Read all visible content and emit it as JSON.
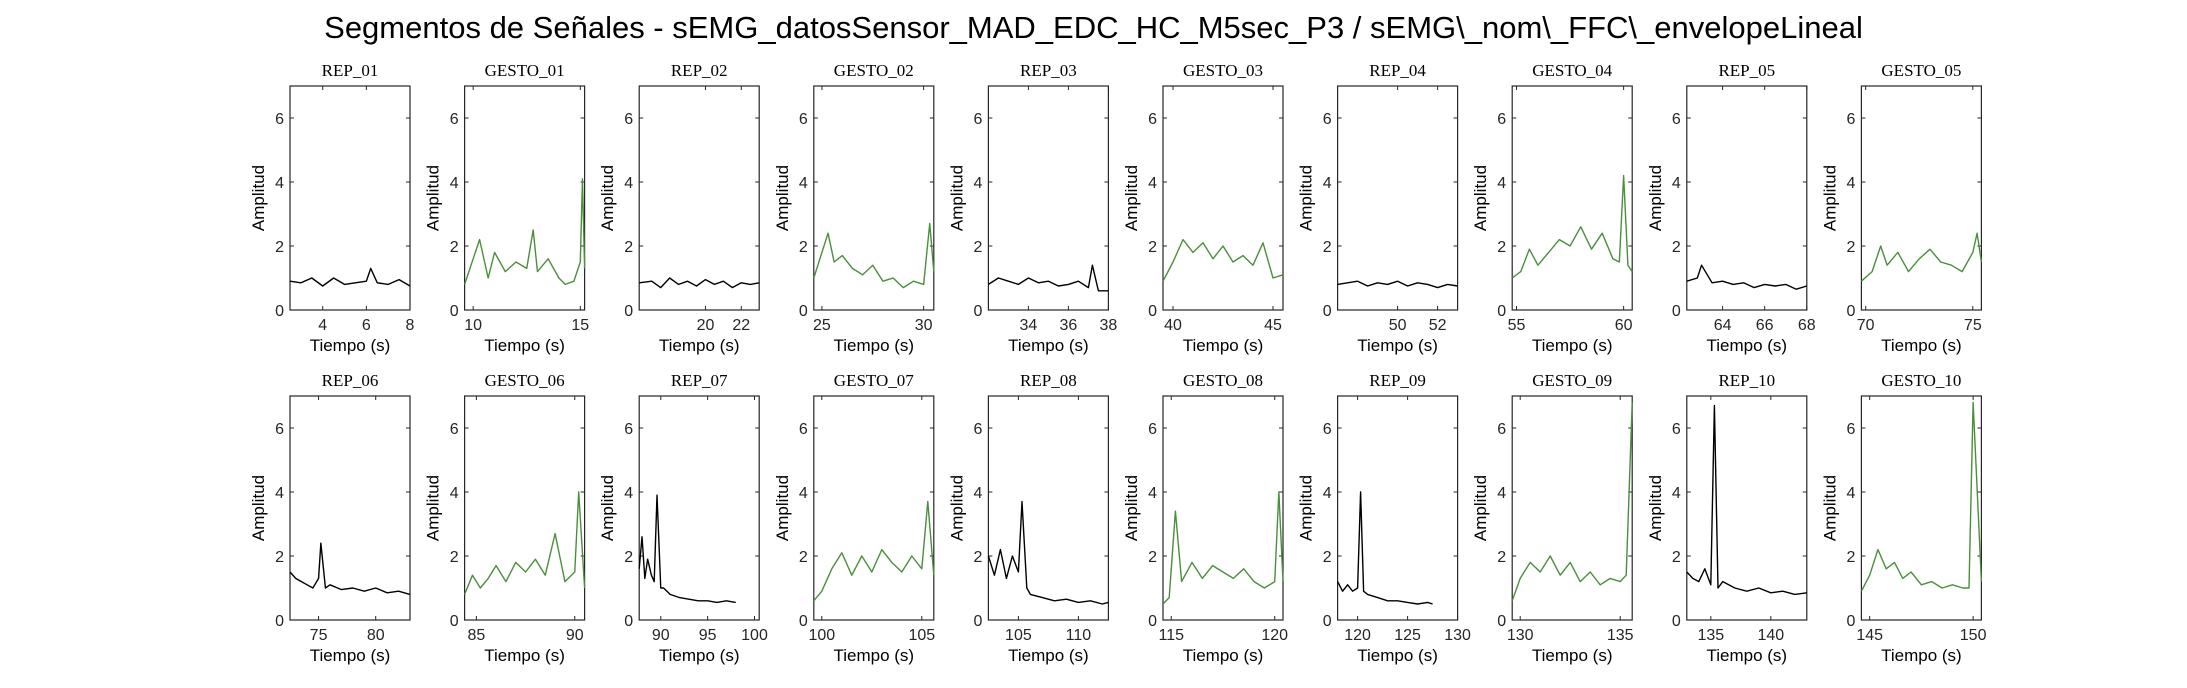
{
  "figure": {
    "title": "Segmentos de Señales - sEMG_datosSensor_MAD_EDC_HC_M5sec_P3 / sEMG\\_nom\\_FFC\\_envelopeLineal"
  },
  "colors": {
    "rep": "#000000",
    "gesto": "#4a8f3c",
    "axis": "#262626"
  },
  "chart_data": [
    {
      "type": "line",
      "title": "REP_01",
      "xlabel": "Tiempo (s)",
      "ylabel": "Amplitud",
      "xlim": [
        2.5,
        8
      ],
      "ylim": [
        0,
        7
      ],
      "xticks": [
        4,
        6,
        8
      ],
      "yticks": [
        0,
        2,
        4,
        6
      ],
      "color": "#000000",
      "x": [
        2.5,
        3,
        3.5,
        4,
        4.5,
        5,
        5.5,
        6,
        6.2,
        6.5,
        7,
        7.5,
        8
      ],
      "y": [
        0.9,
        0.85,
        1.0,
        0.75,
        1.0,
        0.8,
        0.85,
        0.9,
        1.3,
        0.85,
        0.8,
        0.95,
        0.75
      ]
    },
    {
      "type": "line",
      "title": "GESTO_01",
      "xlabel": "Tiempo (s)",
      "ylabel": "Amplitud",
      "xlim": [
        9.6,
        15.2
      ],
      "ylim": [
        0,
        7
      ],
      "xticks": [
        10,
        15
      ],
      "yticks": [
        0,
        2,
        4,
        6
      ],
      "color": "#4a8f3c",
      "x": [
        9.6,
        10,
        10.3,
        10.7,
        11,
        11.5,
        12,
        12.5,
        12.8,
        13,
        13.5,
        14,
        14.3,
        14.7,
        15,
        15.1,
        15.2
      ],
      "y": [
        0.8,
        1.6,
        2.2,
        1.0,
        1.8,
        1.2,
        1.5,
        1.3,
        2.5,
        1.2,
        1.6,
        1.0,
        0.8,
        0.9,
        1.5,
        4.1,
        1.3
      ]
    },
    {
      "type": "line",
      "title": "REP_02",
      "xlabel": "Tiempo (s)",
      "ylabel": "Amplitud",
      "xlim": [
        16.3,
        23
      ],
      "ylim": [
        0,
        7
      ],
      "xticks": [
        20,
        22
      ],
      "yticks": [
        0,
        2,
        4,
        6
      ],
      "color": "#000000",
      "x": [
        16.3,
        17,
        17.5,
        18,
        18.5,
        19,
        19.5,
        20,
        20.5,
        21,
        21.5,
        22,
        22.5,
        23
      ],
      "y": [
        0.85,
        0.9,
        0.7,
        1.0,
        0.8,
        0.9,
        0.75,
        0.95,
        0.8,
        0.9,
        0.7,
        0.85,
        0.8,
        0.85
      ]
    },
    {
      "type": "line",
      "title": "GESTO_02",
      "xlabel": "Tiempo (s)",
      "ylabel": "Amplitud",
      "xlim": [
        24.6,
        30.5
      ],
      "ylim": [
        0,
        7
      ],
      "xticks": [
        25,
        30
      ],
      "yticks": [
        0,
        2,
        4,
        6
      ],
      "color": "#4a8f3c",
      "x": [
        24.6,
        25,
        25.3,
        25.6,
        26,
        26.5,
        27,
        27.5,
        28,
        28.5,
        29,
        29.5,
        30,
        30.3,
        30.5
      ],
      "y": [
        1.0,
        1.8,
        2.4,
        1.5,
        1.7,
        1.3,
        1.1,
        1.4,
        0.9,
        1.0,
        0.7,
        0.9,
        0.8,
        2.7,
        1.2
      ]
    },
    {
      "type": "line",
      "title": "REP_03",
      "xlabel": "Tiempo (s)",
      "ylabel": "Amplitud",
      "xlim": [
        32,
        38
      ],
      "ylim": [
        0,
        7
      ],
      "xticks": [
        34,
        36,
        38
      ],
      "yticks": [
        0,
        2,
        4,
        6
      ],
      "color": "#000000",
      "x": [
        32,
        32.5,
        33,
        33.5,
        34,
        34.5,
        35,
        35.5,
        36,
        36.5,
        37,
        37.2,
        37.5,
        38
      ],
      "y": [
        0.8,
        1.0,
        0.9,
        0.8,
        1.0,
        0.85,
        0.9,
        0.75,
        0.8,
        0.9,
        0.7,
        1.4,
        0.6,
        0.6
      ]
    },
    {
      "type": "line",
      "title": "GESTO_03",
      "xlabel": "Tiempo (s)",
      "ylabel": "Amplitud",
      "xlim": [
        39.5,
        45.5
      ],
      "ylim": [
        0,
        7
      ],
      "xticks": [
        40,
        45
      ],
      "yticks": [
        0,
        2,
        4,
        6
      ],
      "color": "#4a8f3c",
      "x": [
        39.5,
        40,
        40.5,
        41,
        41.5,
        42,
        42.5,
        43,
        43.5,
        44,
        44.5,
        45,
        45.5
      ],
      "y": [
        0.9,
        1.5,
        2.2,
        1.8,
        2.1,
        1.6,
        2.0,
        1.5,
        1.7,
        1.4,
        2.1,
        1.0,
        1.1
      ]
    },
    {
      "type": "line",
      "title": "REP_04",
      "xlabel": "Tiempo (s)",
      "ylabel": "Amplitud",
      "xlim": [
        47,
        53
      ],
      "ylim": [
        0,
        7
      ],
      "xticks": [
        50,
        52
      ],
      "yticks": [
        0,
        2,
        4,
        6
      ],
      "color": "#000000",
      "x": [
        47,
        47.5,
        48,
        48.5,
        49,
        49.5,
        50,
        50.5,
        51,
        51.5,
        52,
        52.5,
        53
      ],
      "y": [
        0.8,
        0.85,
        0.9,
        0.75,
        0.85,
        0.8,
        0.9,
        0.75,
        0.85,
        0.8,
        0.7,
        0.8,
        0.75
      ]
    },
    {
      "type": "line",
      "title": "GESTO_04",
      "xlabel": "Tiempo (s)",
      "ylabel": "Amplitud",
      "xlim": [
        54.8,
        60.4
      ],
      "ylim": [
        0,
        7
      ],
      "xticks": [
        55,
        60
      ],
      "yticks": [
        0,
        2,
        4,
        6
      ],
      "color": "#4a8f3c",
      "x": [
        54.8,
        55.2,
        55.6,
        56,
        56.5,
        57,
        57.5,
        58,
        58.5,
        59,
        59.5,
        59.8,
        60,
        60.2,
        60.4
      ],
      "y": [
        1.0,
        1.2,
        1.9,
        1.4,
        1.8,
        2.2,
        2.0,
        2.6,
        1.9,
        2.4,
        1.6,
        1.5,
        4.2,
        1.4,
        1.2
      ]
    },
    {
      "type": "line",
      "title": "REP_05",
      "xlabel": "Tiempo (s)",
      "ylabel": "Amplitud",
      "xlim": [
        62.3,
        68
      ],
      "ylim": [
        0,
        7
      ],
      "xticks": [
        64,
        66,
        68
      ],
      "yticks": [
        0,
        2,
        4,
        6
      ],
      "color": "#000000",
      "x": [
        62.3,
        62.8,
        63,
        63.5,
        64,
        64.5,
        65,
        65.5,
        66,
        66.5,
        67,
        67.5,
        68
      ],
      "y": [
        0.9,
        1.0,
        1.4,
        0.85,
        0.9,
        0.8,
        0.85,
        0.7,
        0.8,
        0.75,
        0.8,
        0.65,
        0.75
      ]
    },
    {
      "type": "line",
      "title": "GESTO_05",
      "xlabel": "Tiempo (s)",
      "ylabel": "Amplitud",
      "xlim": [
        69.8,
        75.4
      ],
      "ylim": [
        0,
        7
      ],
      "xticks": [
        70,
        75
      ],
      "yticks": [
        0,
        2,
        4,
        6
      ],
      "color": "#4a8f3c",
      "x": [
        69.8,
        70.3,
        70.7,
        71,
        71.5,
        72,
        72.5,
        73,
        73.5,
        74,
        74.5,
        75,
        75.2,
        75.4
      ],
      "y": [
        0.9,
        1.2,
        2.0,
        1.4,
        1.8,
        1.2,
        1.6,
        1.9,
        1.5,
        1.4,
        1.2,
        1.8,
        2.4,
        1.5
      ]
    },
    {
      "type": "line",
      "title": "REP_06",
      "xlabel": "Tiempo (s)",
      "ylabel": "Amplitud",
      "xlim": [
        72.5,
        83
      ],
      "ylim": [
        0,
        7
      ],
      "xticks": [
        75,
        80
      ],
      "yticks": [
        0,
        2,
        4,
        6
      ],
      "color": "#000000",
      "x": [
        72.5,
        73,
        73.5,
        74,
        74.5,
        75,
        75.2,
        75.6,
        76,
        77,
        78,
        79,
        80,
        81,
        82,
        83
      ],
      "y": [
        1.5,
        1.3,
        1.2,
        1.1,
        1.0,
        1.3,
        2.4,
        1.0,
        1.1,
        0.95,
        1.0,
        0.9,
        1.0,
        0.85,
        0.9,
        0.8
      ]
    },
    {
      "type": "line",
      "title": "GESTO_06",
      "xlabel": "Tiempo (s)",
      "ylabel": "Amplitud",
      "xlim": [
        84.4,
        90.5
      ],
      "ylim": [
        0,
        7
      ],
      "xticks": [
        85,
        90
      ],
      "yticks": [
        0,
        2,
        4,
        6
      ],
      "color": "#4a8f3c",
      "x": [
        84.4,
        84.8,
        85.2,
        85.6,
        86,
        86.5,
        87,
        87.5,
        88,
        88.5,
        89,
        89.5,
        90,
        90.2,
        90.5
      ],
      "y": [
        0.8,
        1.4,
        1.0,
        1.3,
        1.7,
        1.2,
        1.8,
        1.5,
        1.9,
        1.4,
        2.7,
        1.2,
        1.5,
        4.0,
        1.0
      ]
    },
    {
      "type": "line",
      "title": "REP_07",
      "xlabel": "Tiempo (s)",
      "ylabel": "Amplitud",
      "xlim": [
        87.7,
        100.5
      ],
      "ylim": [
        0,
        7
      ],
      "xticks": [
        90,
        95,
        100
      ],
      "yticks": [
        0,
        2,
        4,
        6
      ],
      "color": "#000000",
      "x": [
        87.7,
        88,
        88.3,
        88.6,
        89,
        89.3,
        89.6,
        90,
        90.3,
        91,
        92,
        93,
        94,
        95,
        96,
        97,
        98
      ],
      "y": [
        1.6,
        2.6,
        1.3,
        1.9,
        1.4,
        1.2,
        3.9,
        1.0,
        1.0,
        0.8,
        0.7,
        0.65,
        0.6,
        0.6,
        0.55,
        0.6,
        0.55
      ]
    },
    {
      "type": "line",
      "title": "GESTO_07",
      "xlabel": "Tiempo (s)",
      "ylabel": "Amplitud",
      "xlim": [
        99.6,
        105.6
      ],
      "ylim": [
        0,
        7
      ],
      "xticks": [
        100,
        105
      ],
      "yticks": [
        0,
        2,
        4,
        6
      ],
      "color": "#4a8f3c",
      "x": [
        99.6,
        100,
        100.5,
        101,
        101.5,
        102,
        102.5,
        103,
        103.5,
        104,
        104.5,
        105,
        105.3,
        105.6
      ],
      "y": [
        0.6,
        0.9,
        1.6,
        2.1,
        1.4,
        2.0,
        1.5,
        2.2,
        1.8,
        1.5,
        2.0,
        1.6,
        3.7,
        1.4
      ]
    },
    {
      "type": "line",
      "title": "REP_08",
      "xlabel": "Tiempo (s)",
      "ylabel": "Amplitud",
      "xlim": [
        102.5,
        112.5
      ],
      "ylim": [
        0,
        7
      ],
      "xticks": [
        105,
        110
      ],
      "yticks": [
        0,
        2,
        4,
        6
      ],
      "color": "#000000",
      "x": [
        102.5,
        103,
        103.5,
        104,
        104.5,
        105,
        105.3,
        105.7,
        106,
        107,
        108,
        109,
        110,
        111,
        112,
        112.5
      ],
      "y": [
        2.0,
        1.4,
        2.2,
        1.3,
        2.0,
        1.5,
        3.7,
        1.0,
        0.8,
        0.7,
        0.6,
        0.65,
        0.55,
        0.6,
        0.5,
        0.55
      ]
    },
    {
      "type": "line",
      "title": "GESTO_08",
      "xlabel": "Tiempo (s)",
      "ylabel": "Amplitud",
      "xlim": [
        114.6,
        120.4
      ],
      "ylim": [
        0,
        7
      ],
      "xticks": [
        115,
        120
      ],
      "yticks": [
        0,
        2,
        4,
        6
      ],
      "color": "#4a8f3c",
      "x": [
        114.6,
        114.9,
        115.2,
        115.5,
        116,
        116.5,
        117,
        117.5,
        118,
        118.5,
        119,
        119.5,
        120,
        120.2,
        120.4
      ],
      "y": [
        0.5,
        0.7,
        3.4,
        1.2,
        1.8,
        1.3,
        1.7,
        1.5,
        1.3,
        1.6,
        1.2,
        1.0,
        1.2,
        4.0,
        1.2
      ]
    },
    {
      "type": "line",
      "title": "REP_09",
      "xlabel": "Tiempo (s)",
      "ylabel": "Amplitud",
      "xlim": [
        118,
        130
      ],
      "ylim": [
        0,
        7
      ],
      "xticks": [
        120,
        125,
        130
      ],
      "yticks": [
        0,
        2,
        4,
        6
      ],
      "color": "#000000",
      "x": [
        118,
        118.5,
        119,
        119.5,
        120,
        120.3,
        120.6,
        121,
        122,
        123,
        124,
        125,
        126,
        127,
        127.5
      ],
      "y": [
        1.2,
        0.9,
        1.1,
        0.9,
        1.0,
        4.0,
        0.9,
        0.8,
        0.7,
        0.6,
        0.6,
        0.55,
        0.5,
        0.55,
        0.5
      ]
    },
    {
      "type": "line",
      "title": "GESTO_09",
      "xlabel": "Tiempo (s)",
      "ylabel": "Amplitud",
      "xlim": [
        129.6,
        135.6
      ],
      "ylim": [
        0,
        7
      ],
      "xticks": [
        130,
        135
      ],
      "yticks": [
        0,
        2,
        4,
        6
      ],
      "color": "#4a8f3c",
      "x": [
        129.6,
        130,
        130.5,
        131,
        131.5,
        132,
        132.5,
        133,
        133.5,
        134,
        134.5,
        135,
        135.3,
        135.6
      ],
      "y": [
        0.6,
        1.3,
        1.8,
        1.5,
        2.0,
        1.4,
        1.8,
        1.2,
        1.5,
        1.1,
        1.3,
        1.2,
        1.4,
        6.8
      ]
    },
    {
      "type": "line",
      "title": "REP_10",
      "xlabel": "Tiempo (s)",
      "ylabel": "Amplitud",
      "xlim": [
        133,
        143
      ],
      "ylim": [
        0,
        7
      ],
      "xticks": [
        135,
        140
      ],
      "yticks": [
        0,
        2,
        4,
        6
      ],
      "color": "#000000",
      "x": [
        133,
        133.5,
        134,
        134.5,
        135,
        135.3,
        135.6,
        136,
        137,
        138,
        139,
        140,
        141,
        142,
        143
      ],
      "y": [
        1.5,
        1.3,
        1.2,
        1.6,
        1.1,
        6.7,
        1.0,
        1.2,
        1.0,
        0.9,
        1.0,
        0.85,
        0.9,
        0.8,
        0.85
      ]
    },
    {
      "type": "line",
      "title": "GESTO_10",
      "xlabel": "Tiempo (s)",
      "ylabel": "Amplitud",
      "xlim": [
        144.6,
        150.4
      ],
      "ylim": [
        0,
        7
      ],
      "xticks": [
        145,
        150
      ],
      "yticks": [
        0,
        2,
        4,
        6
      ],
      "color": "#4a8f3c",
      "x": [
        144.6,
        145,
        145.4,
        145.8,
        146.2,
        146.6,
        147,
        147.5,
        148,
        148.5,
        149,
        149.5,
        149.8,
        150,
        150.2,
        150.4
      ],
      "y": [
        0.9,
        1.4,
        2.2,
        1.6,
        1.8,
        1.3,
        1.5,
        1.1,
        1.2,
        1.0,
        1.1,
        1.0,
        1.0,
        6.8,
        4.0,
        1.2
      ]
    }
  ]
}
